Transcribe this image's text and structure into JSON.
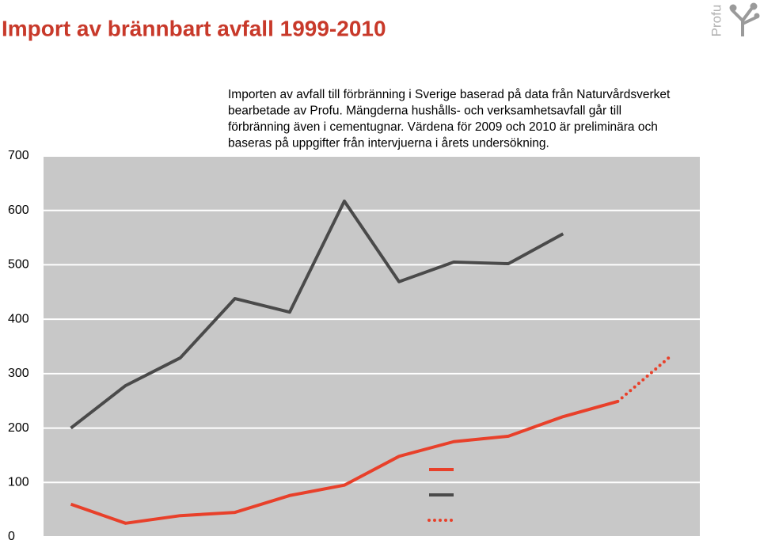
{
  "chart_data": {
    "type": "line",
    "title": "Import av brännbart avfall 1999-2010",
    "logo": "Profu",
    "annotation": [
      "Importen av avfall till förbränning i Sverige baserad på data från Naturvårdsverket",
      "bearbetade av Profu. Mängderna hushålls- och verksamhetsavfall går till",
      "förbränning även i cementugnar. Värdena för 2009 och 2010 är preliminära och",
      "baseras på uppgifter från intervjuerna i årets undersökning."
    ],
    "categories": [
      null,
      null,
      null,
      null,
      null,
      null,
      null,
      null,
      null,
      null,
      null,
      null
    ],
    "series": [
      {
        "color": "#e8402a",
        "dash": "solid",
        "values": [
          60,
          25,
          39,
          45,
          76,
          95,
          148,
          175,
          185,
          221,
          249,
          null
        ]
      },
      {
        "color": "#4a4a4a",
        "dash": "solid",
        "values": [
          200,
          278,
          329,
          438,
          413,
          617,
          469,
          505,
          502,
          557,
          null,
          null
        ]
      },
      {
        "color": "#e8402a",
        "dash": "dotted",
        "values": [
          null,
          null,
          null,
          null,
          null,
          null,
          null,
          null,
          null,
          null,
          249,
          335
        ]
      }
    ],
    "ylim": [
      0,
      700
    ],
    "yticks": [
      0,
      100,
      200,
      300,
      400,
      500,
      600,
      700
    ],
    "grid": true,
    "background": "#c8c8c8"
  }
}
